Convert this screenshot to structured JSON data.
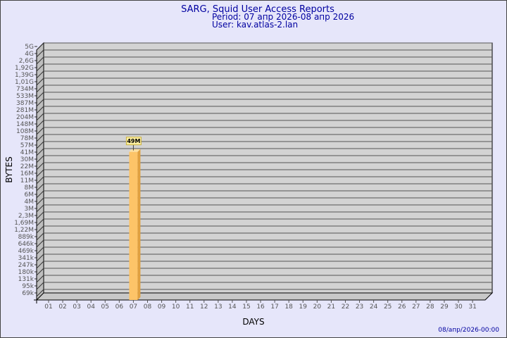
{
  "header": {
    "title": "SARG, Squid User Access Reports",
    "period": "Period: 07 апр 2026-08 апр 2026",
    "user": "User: kav.atlas-2.lan"
  },
  "footer": {
    "generated": "08/апр/2026-00:00"
  },
  "colors": {
    "title": "#0000a0",
    "bar_front": "#fdc468",
    "bar_side": "#e0a040",
    "plot_bg": "#d3d3d3",
    "label_bg": "#fff0a0"
  },
  "chart_data": {
    "type": "bar",
    "xlabel": "DAYS",
    "ylabel": "BYTES",
    "y_scale": "log",
    "y_ticks": [
      "5G",
      "4G",
      "2,6G",
      "1,92G",
      "1,39G",
      "1,01G",
      "734M",
      "533M",
      "387M",
      "281M",
      "204M",
      "148M",
      "108M",
      "78M",
      "57M",
      "41M",
      "30M",
      "22M",
      "16M",
      "11M",
      "8M",
      "6M",
      "4M",
      "3M",
      "2,3M",
      "1,69M",
      "1,22M",
      "889k",
      "646k",
      "469k",
      "341k",
      "247k",
      "180k",
      "131k",
      "95k",
      "69k"
    ],
    "categories": [
      "01",
      "02",
      "03",
      "04",
      "05",
      "06",
      "07",
      "08",
      "09",
      "10",
      "11",
      "12",
      "13",
      "14",
      "15",
      "16",
      "17",
      "18",
      "19",
      "20",
      "21",
      "22",
      "23",
      "24",
      "25",
      "26",
      "27",
      "28",
      "29",
      "30",
      "31"
    ],
    "bars": [
      {
        "day": "07",
        "value": "49M"
      }
    ],
    "grid": true
  }
}
